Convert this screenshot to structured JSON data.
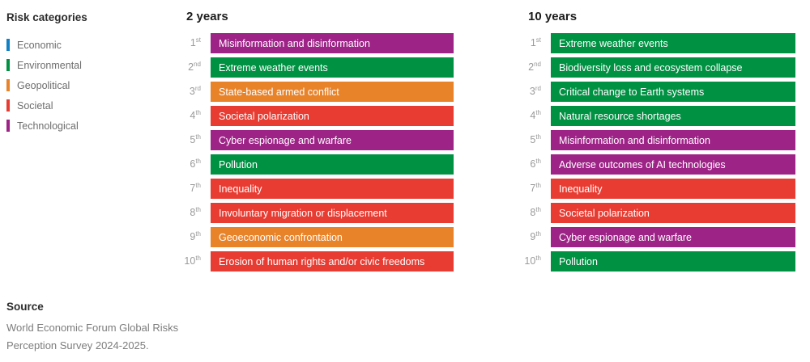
{
  "chart_data": {
    "type": "table",
    "legend": {
      "title": "Risk categories",
      "categories": [
        {
          "label": "Economic",
          "key": "economic",
          "color": "#1181c5"
        },
        {
          "label": "Environmental",
          "key": "environmental",
          "color": "#009143"
        },
        {
          "label": "Geopolitical",
          "key": "geopolitical",
          "color": "#e8832a"
        },
        {
          "label": "Societal",
          "key": "societal",
          "color": "#e83c32"
        },
        {
          "label": "Technological",
          "key": "technological",
          "color": "#9e2387"
        }
      ]
    },
    "columns": [
      {
        "title": "2 years",
        "rows": [
          {
            "rank": "1",
            "suffix": "st",
            "label": "Misinformation and disinformation",
            "category": "technological"
          },
          {
            "rank": "2",
            "suffix": "nd",
            "label": "Extreme weather events",
            "category": "environmental"
          },
          {
            "rank": "3",
            "suffix": "rd",
            "label": "State-based armed conflict",
            "category": "geopolitical"
          },
          {
            "rank": "4",
            "suffix": "th",
            "label": "Societal polarization",
            "category": "societal"
          },
          {
            "rank": "5",
            "suffix": "th",
            "label": "Cyber espionage and warfare",
            "category": "technological"
          },
          {
            "rank": "6",
            "suffix": "th",
            "label": "Pollution",
            "category": "environmental"
          },
          {
            "rank": "7",
            "suffix": "th",
            "label": "Inequality",
            "category": "societal"
          },
          {
            "rank": "8",
            "suffix": "th",
            "label": "Involuntary migration or displacement",
            "category": "societal"
          },
          {
            "rank": "9",
            "suffix": "th",
            "label": "Geoeconomic confrontation",
            "category": "geopolitical"
          },
          {
            "rank": "10",
            "suffix": "th",
            "label": "Erosion of human rights and/or civic freedoms",
            "category": "societal"
          }
        ]
      },
      {
        "title": "10 years",
        "rows": [
          {
            "rank": "1",
            "suffix": "st",
            "label": "Extreme weather events",
            "category": "environmental"
          },
          {
            "rank": "2",
            "suffix": "nd",
            "label": "Biodiversity loss and ecosystem collapse",
            "category": "environmental"
          },
          {
            "rank": "3",
            "suffix": "rd",
            "label": "Critical change to Earth systems",
            "category": "environmental"
          },
          {
            "rank": "4",
            "suffix": "th",
            "label": "Natural resource shortages",
            "category": "environmental"
          },
          {
            "rank": "5",
            "suffix": "th",
            "label": "Misinformation and disinformation",
            "category": "technological"
          },
          {
            "rank": "6",
            "suffix": "th",
            "label": "Adverse outcomes of AI technologies",
            "category": "technological"
          },
          {
            "rank": "7",
            "suffix": "th",
            "label": "Inequality",
            "category": "societal"
          },
          {
            "rank": "8",
            "suffix": "th",
            "label": "Societal polarization",
            "category": "societal"
          },
          {
            "rank": "9",
            "suffix": "th",
            "label": "Cyber espionage and warfare",
            "category": "technological"
          },
          {
            "rank": "10",
            "suffix": "th",
            "label": "Pollution",
            "category": "environmental"
          }
        ]
      }
    ]
  },
  "source": {
    "title": "Source",
    "lines": [
      "World Economic Forum Global Risks",
      "Perception Survey 2024-2025."
    ]
  }
}
